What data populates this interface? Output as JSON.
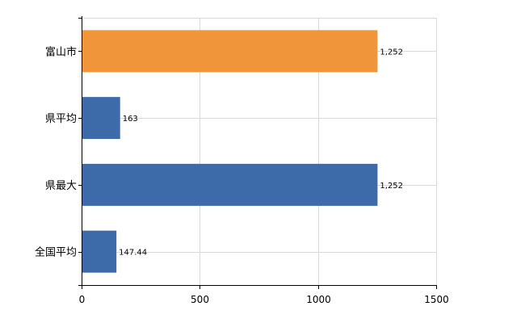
{
  "chart_data": {
    "type": "bar",
    "orientation": "horizontal",
    "categories": [
      "富山市",
      "県平均",
      "県最大",
      "全国平均"
    ],
    "values": [
      1252,
      163,
      1252,
      147.44
    ],
    "data_labels": [
      "1,252",
      "163",
      "1,252",
      "147.44"
    ],
    "bar_colors": [
      "#f0953a",
      "#3d6aa8",
      "#3d6aa8",
      "#3d6aa8"
    ],
    "xlim": [
      0,
      1500
    ],
    "x_ticks": [
      0,
      500,
      1000,
      1500
    ],
    "x_tick_labels": [
      "0",
      "500",
      "1000",
      "1500"
    ],
    "grid": true,
    "legend": "none"
  }
}
